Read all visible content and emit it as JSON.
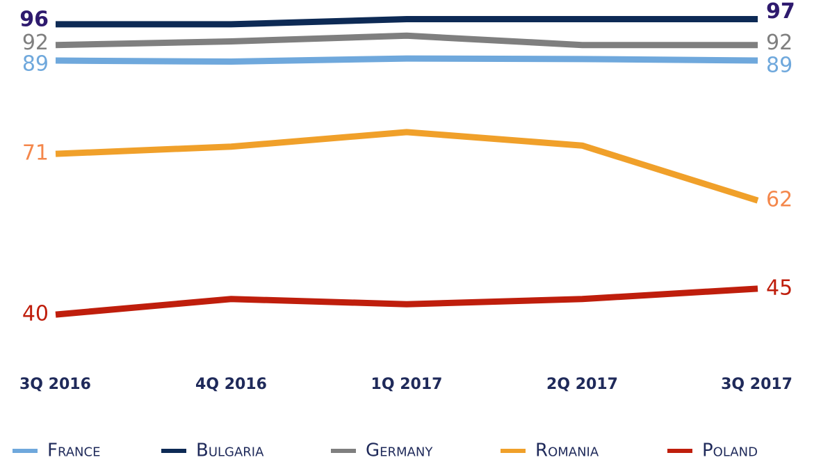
{
  "chart_data": {
    "type": "line",
    "categories": [
      "3Q 2016",
      "4Q 2016",
      "1Q 2017",
      "2Q 2017",
      "3Q 2017"
    ],
    "ylim": [
      38,
      98
    ],
    "series": [
      {
        "name": "France",
        "color": "#6fa8dc",
        "label_color": "#6fa8dc",
        "values": [
          89,
          88.8,
          89.4,
          89.3,
          89
        ]
      },
      {
        "name": "Bulgaria",
        "color": "#0d2a55",
        "label_color": "#2e1a6e",
        "values": [
          96,
          96,
          97,
          97,
          97
        ]
      },
      {
        "name": "Germany",
        "color": "#7f7f7f",
        "label_color": "#7f7f7f",
        "values": [
          92,
          92.7,
          93.8,
          92,
          92
        ]
      },
      {
        "name": "Romania",
        "color": "#f0a02a",
        "label_color": "#f4874b",
        "values": [
          71,
          72.4,
          75.2,
          72.6,
          62
        ]
      },
      {
        "name": "Poland",
        "color": "#bf1e0c",
        "label_color": "#bf1e0c",
        "values": [
          40,
          43,
          42,
          43,
          45
        ]
      }
    ]
  }
}
